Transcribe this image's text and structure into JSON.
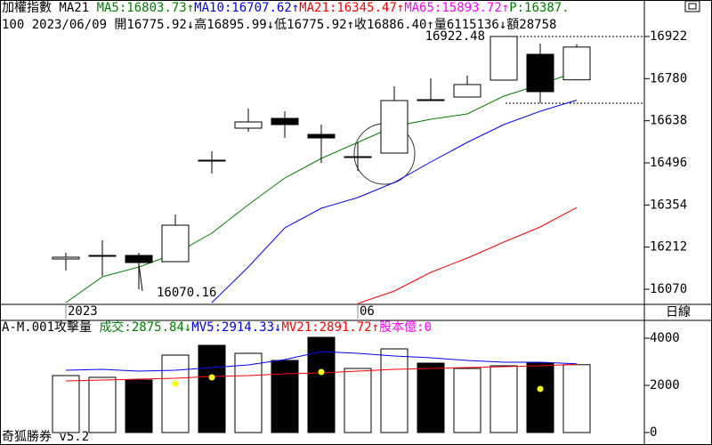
{
  "header": {
    "line1": [
      {
        "text": "加權指數 MA21 ",
        "color": "#000000"
      },
      {
        "text": "MA5:16803.73↑",
        "color": "#008000"
      },
      {
        "text": "MA10:16707.62↑",
        "color": "#0000ff"
      },
      {
        "text": "MA21:16345.47↑",
        "color": "#ff0000"
      },
      {
        "text": "MA65:15893.72↑",
        "color": "#ff00ff"
      },
      {
        "text": "P:16387.",
        "color": "#008000"
      }
    ],
    "line2": "100 2023/06/09 開16775.92↓高16895.99↓低16775.92↑收16886.40↑量6115136↓額28758"
  },
  "chart_data": [
    {
      "type": "candlestick",
      "period": "日線",
      "categories": [
        "2023",
        null,
        null,
        null,
        null,
        null,
        null,
        null,
        "06",
        null,
        null,
        null,
        null,
        null,
        null
      ],
      "open": [
        16172,
        16184,
        16184,
        16163,
        16505,
        16613,
        16646,
        16592,
        16517,
        16529,
        16709,
        16718,
        16775,
        16862,
        16775.92
      ],
      "high": [
        16193,
        16235,
        16193,
        16322,
        16535,
        16679,
        16670,
        16625,
        16565,
        16754,
        16781,
        16790,
        16922.48,
        16898,
        16895.99
      ],
      "low": [
        16133,
        16115,
        16070.16,
        16163,
        16460,
        16601,
        16580,
        16496,
        16469,
        16529,
        16706,
        16718,
        16775,
        16697,
        16775.92
      ],
      "close": [
        16178,
        16184,
        16160,
        16286,
        16505,
        16634,
        16625,
        16580,
        16517,
        16706,
        16709,
        16760,
        16922,
        16736,
        16886.4
      ],
      "series": [
        {
          "color": "#008000",
          "values": [
            16025,
            16112,
            16145,
            16190,
            16259,
            16355,
            16445,
            16511,
            16565,
            16619,
            16643,
            16661,
            16721,
            16760,
            16803.73
          ]
        },
        {
          "color": "#0000ff",
          "values": [
            null,
            null,
            null,
            null,
            16025,
            16145,
            16277,
            16343,
            16379,
            16430,
            16499,
            16565,
            16625,
            16670,
            16707.62
          ]
        },
        {
          "color": "#ff0000",
          "values": [
            null,
            null,
            null,
            null,
            null,
            null,
            null,
            null,
            16022,
            16064,
            16127,
            16175,
            16229,
            16280,
            16345.47
          ]
        }
      ],
      "ylim": [
        16019,
        16955
      ],
      "yticks": [
        16070,
        16212,
        16354,
        16496,
        16638,
        16780,
        16922
      ]
    },
    {
      "type": "bar",
      "header": [
        {
          "text": "A-M.001攻擊量 ",
          "color": "#000000"
        },
        {
          "text": "成交:2875.84↓",
          "color": "#008000"
        },
        {
          "text": "MV5:2914.33↓",
          "color": "#0000ff"
        },
        {
          "text": "MV21:2891.72↑",
          "color": "#ff0000"
        },
        {
          "text": "股本億:0",
          "color": "#ff00ff"
        }
      ],
      "values": [
        2415,
        2340,
        2227,
        3283,
        3698,
        3359,
        3057,
        4038,
        2717,
        3547,
        2943,
        2717,
        2830,
        2943,
        2875.84
      ],
      "colors": [
        "#ffffff",
        "#ffffff",
        "#000000",
        "#ffffff",
        "#000000",
        "#ffffff",
        "#000000",
        "#000000",
        "#ffffff",
        "#ffffff",
        "#000000",
        "#ffffff",
        "#ffffff",
        "#000000",
        "#ffffff"
      ],
      "series": [
        {
          "color": "#0000ff",
          "type": "line",
          "values": [
            2642,
            2679,
            2604,
            2642,
            2755,
            2868,
            3094,
            3434,
            3358,
            3245,
            3170,
            3057,
            2981,
            2981,
            2914.33
          ]
        },
        {
          "color": "#ff0000",
          "type": "line",
          "values": [
            2189,
            2226,
            2264,
            2302,
            2377,
            2415,
            2491,
            2528,
            2604,
            2679,
            2717,
            2755,
            2792,
            2830,
            2891.72
          ]
        },
        {
          "color": "#ffff00",
          "type": "dot",
          "values": [
            null,
            null,
            null,
            2076,
            2340,
            null,
            null,
            2566,
            null,
            null,
            null,
            null,
            null,
            1849,
            null
          ]
        }
      ],
      "ylim": [
        -151,
        4679
      ],
      "yticks": [
        0,
        2000,
        4000
      ]
    }
  ],
  "footer": "奇狐勝券 v5.2"
}
